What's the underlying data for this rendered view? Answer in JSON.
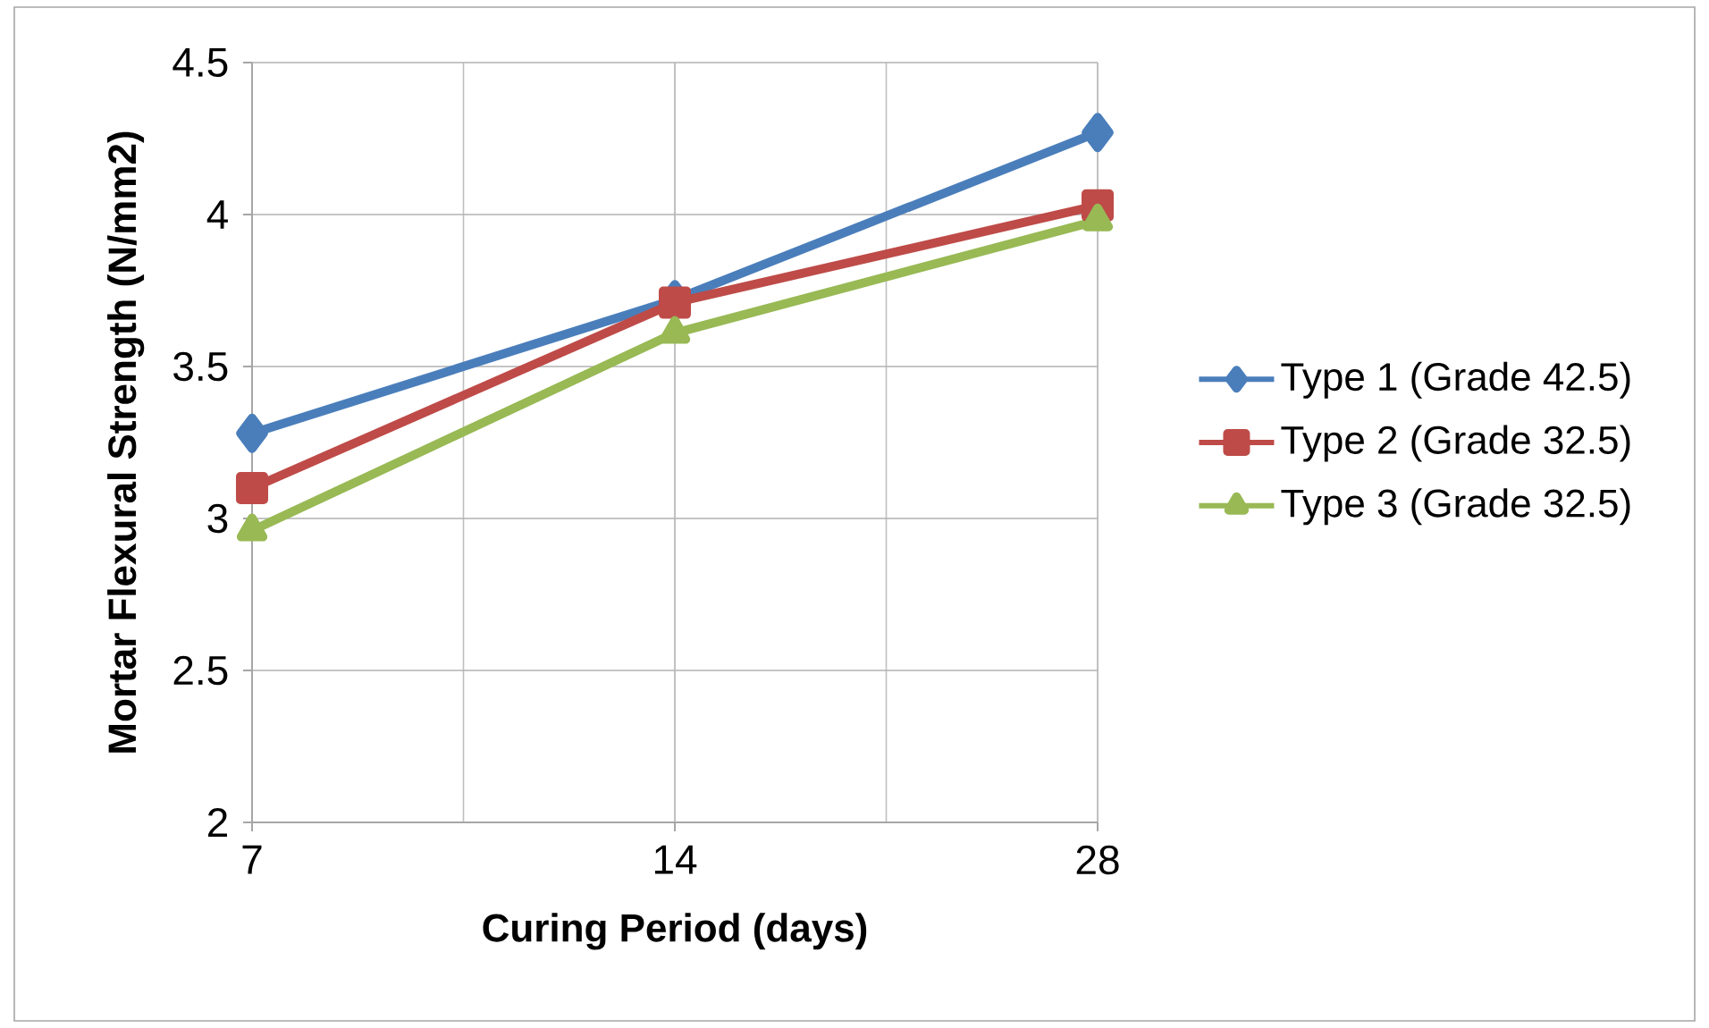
{
  "chart_data": {
    "type": "line",
    "xlabel": "Curing Period (days)",
    "ylabel": "Mortar Flexural Strength (N/mm2)",
    "categories": [
      "7",
      "14",
      "28"
    ],
    "series": [
      {
        "name": "Type 1 (Grade 42.5)",
        "color": "#4a7ebb",
        "marker": "diamond",
        "values": [
          3.28,
          3.72,
          4.27
        ]
      },
      {
        "name": "Type 2 (Grade 32.5)",
        "color": "#be4b48",
        "marker": "square",
        "values": [
          3.1,
          3.71,
          4.03
        ]
      },
      {
        "name": "Type 3 (Grade 32.5)",
        "color": "#98b954",
        "marker": "triangle",
        "values": [
          2.96,
          3.61,
          3.98
        ]
      }
    ],
    "ylim": [
      2,
      4.5
    ],
    "yticks": [
      2,
      2.5,
      3,
      3.5,
      4,
      4.5
    ],
    "grid": true,
    "legend": "right",
    "line_style": "solid"
  }
}
